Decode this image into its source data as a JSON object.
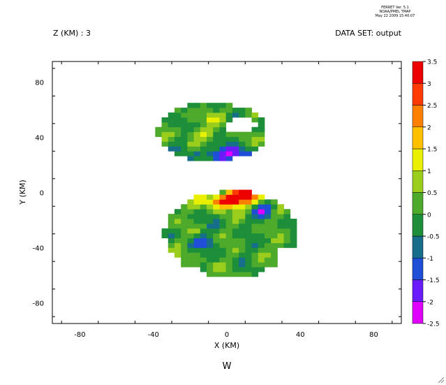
{
  "header": {
    "ferret_version": "FERRET Ver. 5.1",
    "org": "NOAA/PMEL TMAP",
    "timestamp": "May 22 2009 15:40:07",
    "z_label": "Z (KM) : 3",
    "dataset_label": "DATA SET: output"
  },
  "footer": {
    "variable_label": "W"
  },
  "chart_data": {
    "type": "heatmap",
    "title": "",
    "xlabel": "X (KM)",
    "ylabel": "Y (KM)",
    "xlim": [
      -95,
      95
    ],
    "ylim": [
      -95,
      95
    ],
    "x_ticks": [
      -80,
      -40,
      0,
      40,
      80
    ],
    "y_ticks": [
      -80,
      -40,
      0,
      40,
      80
    ],
    "x_tick_labels": [
      "-80",
      "-40",
      "0",
      "40",
      "80"
    ],
    "y_tick_labels": [
      "-80",
      "-40",
      "0",
      "40",
      "80"
    ],
    "colorbar": {
      "min": -2.5,
      "max": 3.5,
      "step": 0.5,
      "tick_labels": [
        "3.5",
        "3",
        "2.5",
        "2",
        "1.5",
        "1",
        "0.5",
        "0",
        "-0.5",
        "-1",
        "-1.5",
        "-2",
        "-2.5"
      ],
      "colors": [
        "#e000ff",
        "#6a1cff",
        "#1f4fd6",
        "#166e8a",
        "#1d8f3a",
        "#4daa2a",
        "#9acd1c",
        "#e8f000",
        "#ffc000",
        "#ff8000",
        "#ff3a00",
        "#ee0000"
      ]
    },
    "grid": false,
    "features": [
      {
        "name": "northern-cell",
        "x": -8,
        "y": 42,
        "rx": 30,
        "ry": 22,
        "value": 0.1
      },
      {
        "name": "southern-cell",
        "x": 2,
        "y": -32,
        "rx": 35,
        "ry": 30,
        "value": -0.1
      },
      {
        "name": "updraft-max",
        "x": 0,
        "y": -6,
        "value": 3.3
      },
      {
        "name": "downdraft-north",
        "x": 2,
        "y": 28,
        "value": -1.8
      },
      {
        "name": "downdraft-east",
        "x": 20,
        "y": -12,
        "value": -1.5
      }
    ]
  }
}
